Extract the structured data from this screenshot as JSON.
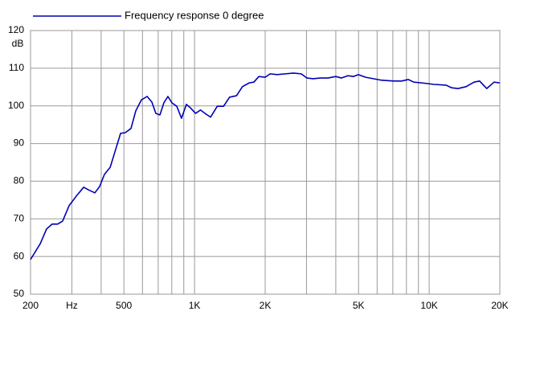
{
  "chart_data": {
    "type": "line",
    "ylabel": "dB",
    "xscale": "log",
    "grid": true,
    "x": [
      200,
      220,
      234,
      247,
      261,
      274,
      292,
      313,
      337,
      353,
      376,
      394,
      413,
      437,
      461,
      484,
      507,
      536,
      562,
      594,
      628,
      658,
      684,
      712,
      740,
      770,
      801,
      840,
      880,
      923,
      960,
      1010,
      1060,
      1120,
      1170,
      1250,
      1330,
      1410,
      1510,
      1600,
      1710,
      1790,
      1880,
      2000,
      2100,
      2250,
      2440,
      2640,
      2850,
      3010,
      3210,
      3420,
      3700,
      4000,
      4230,
      4500,
      4760,
      4990,
      5360,
      5800,
      6280,
      7060,
      7640,
      8140,
      8600,
      9300,
      10480,
      11800,
      12470,
      13270,
      14360,
      15540,
      16400,
      17600,
      18900,
      20000
    ],
    "series": [
      {
        "name": "Frequency response 0 degree",
        "color": "#0000b4",
        "values": [
          59.2,
          63.4,
          67.3,
          68.6,
          68.6,
          69.4,
          73.5,
          76.0,
          78.4,
          77.7,
          76.9,
          78.6,
          81.8,
          83.7,
          88.4,
          92.7,
          92.9,
          94.0,
          98.7,
          101.6,
          102.5,
          101.0,
          98.0,
          97.6,
          100.8,
          102.5,
          100.8,
          99.9,
          96.7,
          100.4,
          99.5,
          98.0,
          98.9,
          97.8,
          97.0,
          99.9,
          99.9,
          102.3,
          102.7,
          105.1,
          106.1,
          106.3,
          107.8,
          107.6,
          108.5,
          108.3,
          108.5,
          108.7,
          108.5,
          107.4,
          107.2,
          107.4,
          107.4,
          107.8,
          107.4,
          108.0,
          107.8,
          108.3,
          107.6,
          107.2,
          106.8,
          106.6,
          106.6,
          107.0,
          106.3,
          106.1,
          105.7,
          105.5,
          104.8,
          104.6,
          105.1,
          106.3,
          106.6,
          104.6,
          106.3,
          106.1
        ]
      }
    ],
    "xlim": [
      200,
      20000
    ],
    "xticks": [
      200,
      {
        "value": 300,
        "label": "Hz"
      },
      500,
      {
        "value": 1000,
        "label": "1K"
      },
      {
        "value": 2000,
        "label": "2K"
      },
      {
        "value": 5000,
        "label": "5K"
      },
      {
        "value": 10000,
        "label": "10K"
      },
      {
        "value": 20000,
        "label": "20K"
      }
    ],
    "xgrid": [
      400,
      600,
      700,
      800,
      900,
      3000,
      4000,
      6000,
      7000,
      8000,
      9000
    ],
    "ylim": [
      50,
      120
    ],
    "yticks": [
      50,
      60,
      70,
      80,
      90,
      100,
      110,
      120
    ]
  }
}
